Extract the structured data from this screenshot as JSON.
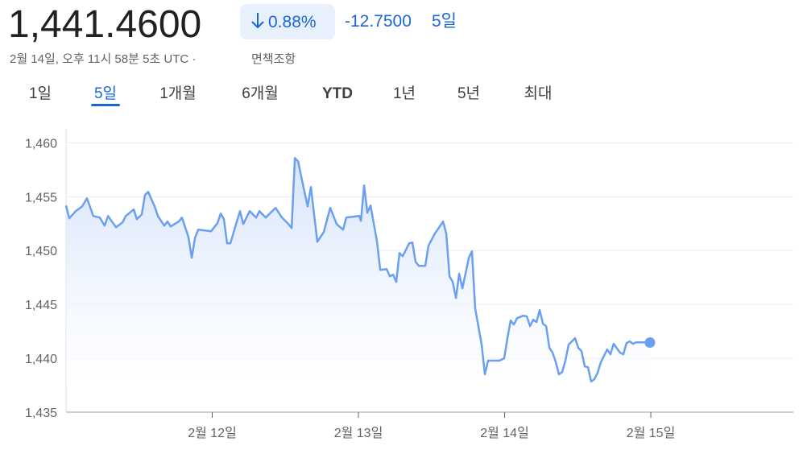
{
  "header": {
    "price": "1,441.4600",
    "change_percent": "0.88%",
    "change": "-12.7500",
    "period": "5일",
    "timestamp": "2월 14일, 오후 11시 58분 5초 UTC ·",
    "disclaimer": "면책조항"
  },
  "tabs": {
    "items": [
      "1일",
      "5일",
      "1개월",
      "6개월",
      "YTD",
      "1년",
      "5년",
      "최대"
    ],
    "selected": 1
  },
  "chart_data": {
    "type": "line",
    "x": [
      11.0,
      11.022,
      11.066,
      11.11,
      11.143,
      11.187,
      11.231,
      11.264,
      11.287,
      11.342,
      11.386,
      11.408,
      11.463,
      11.485,
      11.518,
      11.54,
      11.562,
      11.606,
      11.628,
      11.672,
      11.694,
      11.716,
      11.771,
      11.793,
      11.837,
      11.86,
      11.882,
      11.904,
      11.992,
      12.036,
      12.058,
      12.08,
      12.102,
      12.124,
      12.168,
      12.19,
      12.212,
      12.256,
      12.3,
      12.322,
      12.366,
      12.433,
      12.477,
      12.521,
      12.543,
      12.565,
      12.587,
      12.631,
      12.653,
      12.675,
      12.719,
      12.763,
      12.807,
      12.851,
      12.895,
      12.917,
      13.006,
      13.017,
      13.039,
      13.061,
      13.083,
      13.127,
      13.149,
      13.193,
      13.215,
      13.237,
      13.259,
      13.281,
      13.303,
      13.347,
      13.369,
      13.391,
      13.413,
      13.457,
      13.479,
      13.523,
      13.579,
      13.601,
      13.623,
      13.645,
      13.667,
      13.689,
      13.711,
      13.755,
      13.777,
      13.799,
      13.843,
      13.865,
      13.887,
      13.964,
      13.997,
      14.019,
      14.041,
      14.063,
      14.085,
      14.129,
      14.152,
      14.174,
      14.196,
      14.218,
      14.24,
      14.262,
      14.284,
      14.306,
      14.328,
      14.35,
      14.372,
      14.394,
      14.416,
      14.438,
      14.482,
      14.504,
      14.526,
      14.548,
      14.57,
      14.592,
      14.614,
      14.636,
      14.658,
      14.702,
      14.724,
      14.746,
      14.79,
      14.812,
      14.834,
      14.856,
      14.878,
      14.9,
      14.994
    ],
    "series": [
      {
        "color": "#6b9ff0",
        "values": [
          1454.18,
          1452.99,
          1453.66,
          1454.1,
          1454.85,
          1453.21,
          1453.06,
          1452.31,
          1453.21,
          1452.16,
          1452.61,
          1453.21,
          1453.81,
          1452.91,
          1453.36,
          1455.15,
          1455.45,
          1454.1,
          1453.21,
          1452.31,
          1452.69,
          1452.24,
          1452.69,
          1453.06,
          1451.27,
          1449.33,
          1451.19,
          1451.94,
          1451.79,
          1452.54,
          1453.43,
          1452.91,
          1450.67,
          1450.67,
          1452.69,
          1453.66,
          1452.46,
          1453.66,
          1453.06,
          1453.66,
          1453.06,
          1453.96,
          1453.06,
          1452.46,
          1452.09,
          1458.58,
          1458.28,
          1455.45,
          1454.1,
          1455.9,
          1450.82,
          1451.72,
          1453.96,
          1452.46,
          1451.94,
          1453.06,
          1453.21,
          1452.76,
          1456.04,
          1453.51,
          1454.18,
          1450.82,
          1448.21,
          1448.28,
          1447.61,
          1447.76,
          1447.09,
          1449.78,
          1449.48,
          1450.67,
          1450.75,
          1448.96,
          1448.58,
          1448.58,
          1450.45,
          1451.57,
          1452.69,
          1451.57,
          1447.61,
          1447.09,
          1445.6,
          1447.84,
          1446.49,
          1449.33,
          1449.93,
          1444.63,
          1441.27,
          1438.51,
          1439.78,
          1439.78,
          1440.0,
          1441.87,
          1443.51,
          1443.13,
          1443.73,
          1443.96,
          1443.88,
          1442.99,
          1443.58,
          1443.36,
          1444.48,
          1443.21,
          1442.99,
          1440.97,
          1440.52,
          1439.63,
          1438.51,
          1438.73,
          1439.78,
          1441.27,
          1441.87,
          1440.97,
          1440.67,
          1439.25,
          1439.18,
          1437.84,
          1438.06,
          1438.66,
          1439.63,
          1440.82,
          1440.37,
          1441.34,
          1440.52,
          1440.37,
          1441.42,
          1441.57,
          1441.34,
          1441.49,
          1441.46
        ]
      }
    ],
    "xlim": [
      11,
      15.975
    ],
    "xticks": [
      {
        "value": 12,
        "label": "2월 12일"
      },
      {
        "value": 13,
        "label": "2월 13일"
      },
      {
        "value": 14,
        "label": "2월 14일"
      },
      {
        "value": 15,
        "label": "2월 15일"
      }
    ],
    "ylim": [
      1435,
      1461.3
    ],
    "yticks": [
      {
        "value": 1435,
        "label": "1,435"
      },
      {
        "value": 1440,
        "label": "1,440"
      },
      {
        "value": 1445,
        "label": "1,445"
      },
      {
        "value": 1450,
        "label": "1,450"
      },
      {
        "value": 1455,
        "label": "1,455"
      },
      {
        "value": 1460,
        "label": "1,460"
      }
    ],
    "grid": true
  }
}
